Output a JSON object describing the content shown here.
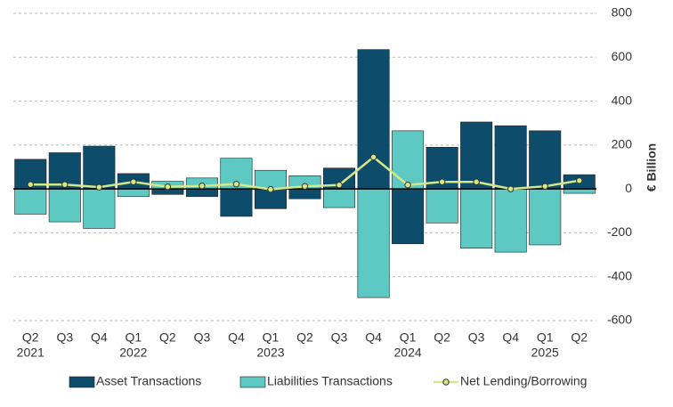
{
  "chart_data": {
    "type": "bar",
    "y_label": "€ Billion",
    "categories": [
      "Q2",
      "Q3",
      "Q4",
      "Q1",
      "Q2",
      "Q3",
      "Q4",
      "Q1",
      "Q2",
      "Q3",
      "Q4",
      "Q1",
      "Q2",
      "Q3",
      "Q4",
      "Q1",
      "Q2"
    ],
    "years": [
      "2021",
      null,
      null,
      "2022",
      null,
      null,
      null,
      "2023",
      null,
      null,
      null,
      "2024",
      null,
      null,
      null,
      "2025",
      null
    ],
    "series": [
      {
        "name": "Asset Transactions",
        "type": "bar",
        "color": "#0d4d6b",
        "values": [
          135,
          165,
          195,
          70,
          -25,
          -35,
          -125,
          -90,
          -45,
          95,
          635,
          -250,
          190,
          305,
          288,
          265,
          65
        ]
      },
      {
        "name": "Liabilities Transactions",
        "type": "bar",
        "color": "#5ec8c2",
        "values": [
          -115,
          -150,
          -180,
          -35,
          35,
          50,
          140,
          85,
          60,
          -85,
          -495,
          265,
          -155,
          -270,
          -288,
          -255,
          -20
        ]
      },
      {
        "name": "Net Lending/Borrowing",
        "type": "line",
        "color": "#d4e88a",
        "values": [
          20,
          20,
          8,
          32,
          10,
          14,
          22,
          -2,
          12,
          18,
          145,
          18,
          32,
          32,
          0,
          12,
          38
        ]
      }
    ],
    "ylim": [
      -600,
      800
    ],
    "yticks": [
      -600,
      -400,
      -200,
      0,
      200,
      400,
      600,
      800
    ],
    "grid": true
  }
}
